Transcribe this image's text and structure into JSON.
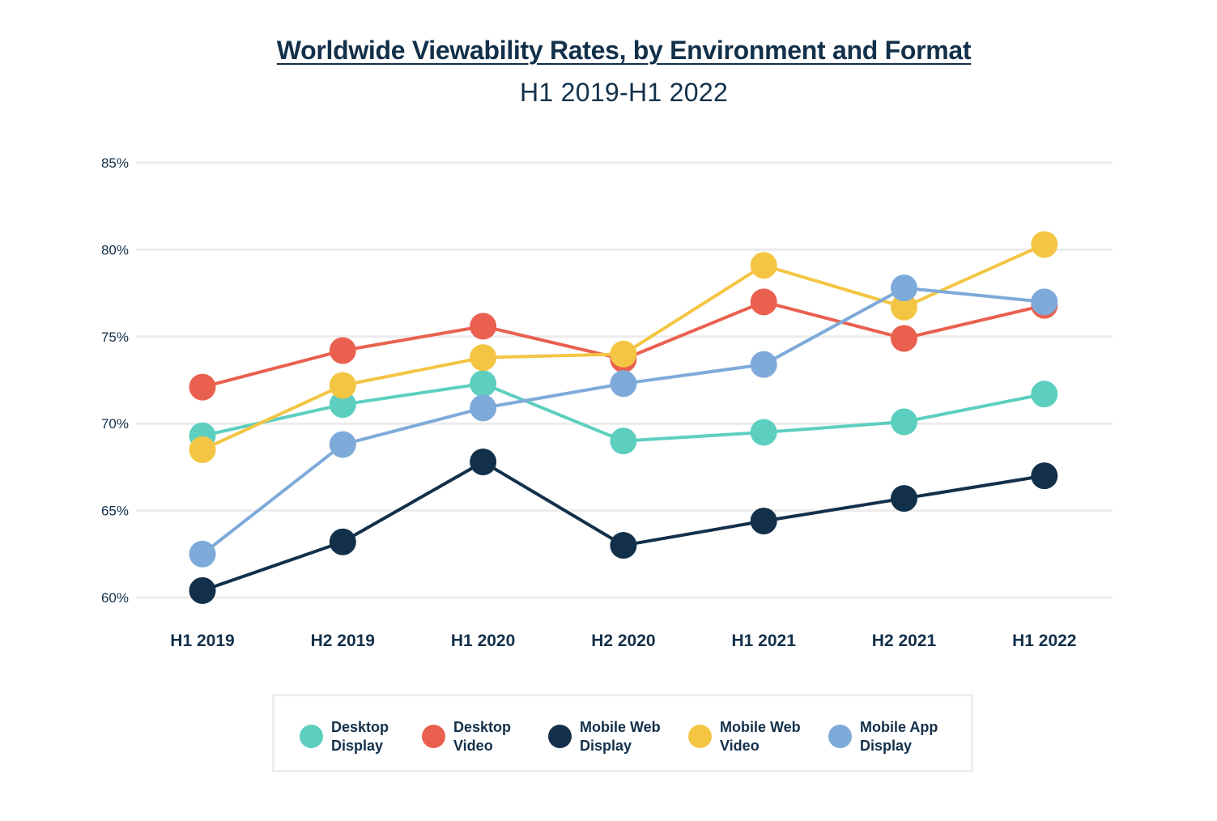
{
  "chart_data": {
    "type": "line",
    "title": "Worldwide Viewability Rates, by Environment and Format",
    "subtitle": "H1 2019-H1 2022",
    "xlabel": "",
    "ylabel": "",
    "categories": [
      "H1 2019",
      "H2 2019",
      "H1 2020",
      "H2 2020",
      "H1 2021",
      "H2 2021",
      "H1 2022"
    ],
    "ylim": [
      60,
      85
    ],
    "yticks": [
      60,
      65,
      70,
      75,
      80,
      85
    ],
    "ytick_labels": [
      "60%",
      "65%",
      "70%",
      "75%",
      "80%",
      "85%"
    ],
    "grid": true,
    "legend_position": "bottom",
    "series": [
      {
        "name": "Desktop Display",
        "legend_lines": [
          "Desktop",
          "Display"
        ],
        "color": "#5dcfbf",
        "values": [
          69.3,
          71.1,
          72.3,
          69.0,
          69.5,
          70.1,
          71.7
        ]
      },
      {
        "name": "Desktop Video",
        "legend_lines": [
          "Desktop",
          "Video"
        ],
        "color": "#e9604f",
        "values": [
          72.1,
          74.2,
          75.6,
          73.7,
          77.0,
          74.9,
          76.8
        ]
      },
      {
        "name": "Mobile Web Display",
        "legend_lines": [
          "Mobile Web",
          "Display"
        ],
        "color": "#13304a",
        "values": [
          60.4,
          63.2,
          67.8,
          63.0,
          64.4,
          65.7,
          67.0
        ]
      },
      {
        "name": "Mobile Web Video",
        "legend_lines": [
          "Mobile Web",
          "Video"
        ],
        "color": "#f4c543",
        "values": [
          68.5,
          72.2,
          73.8,
          74.0,
          79.1,
          76.7,
          80.3
        ]
      },
      {
        "name": "Mobile App Display",
        "legend_lines": [
          "Mobile App",
          "Display"
        ],
        "color": "#7eaad9",
        "values": [
          62.5,
          68.8,
          70.9,
          72.3,
          73.4,
          77.8,
          77.0
        ]
      }
    ]
  }
}
